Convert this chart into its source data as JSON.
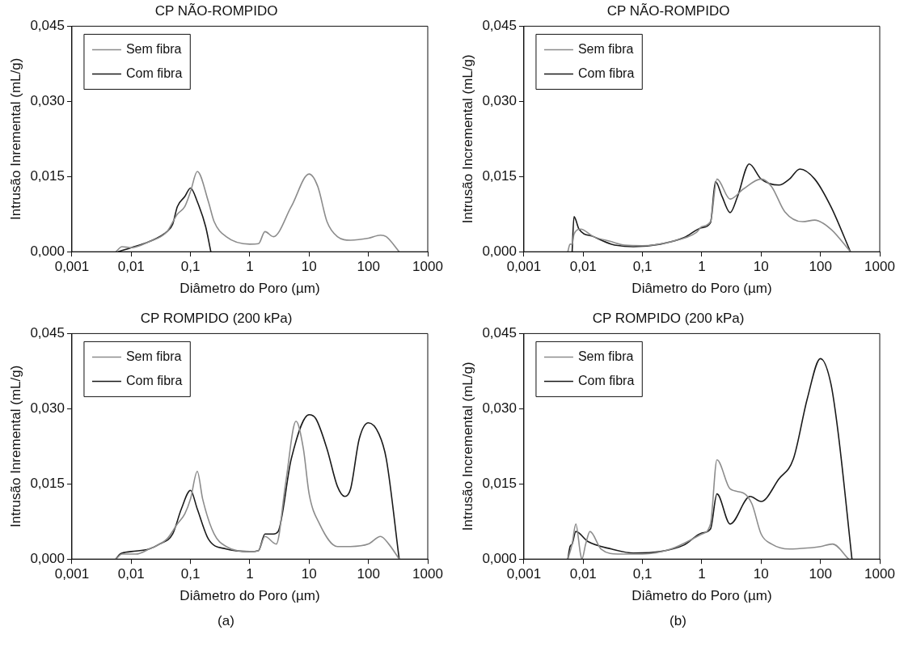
{
  "chart_data": [
    {
      "type": "line",
      "title": "CP NÃO-ROMPIDO",
      "xlabel": "Diâmetro do Poro (µm)",
      "ylabel": "Intrusão Inremental (mL/g)",
      "log": "x",
      "legend": "top left",
      "grid": false,
      "xlim": [
        0.001,
        1000
      ],
      "xticks": [
        {
          "value": 0.001,
          "label": "0,001"
        },
        {
          "value": 0.01,
          "label": "0,01"
        },
        {
          "value": 0.1,
          "label": "0,1"
        },
        {
          "value": 1,
          "label": "1"
        },
        {
          "value": 10,
          "label": "10"
        },
        {
          "value": 100,
          "label": "100"
        },
        {
          "value": 1000,
          "label": "1000"
        }
      ],
      "ylim": [
        0,
        0.045
      ],
      "yticks": [
        {
          "value": 0,
          "label": "0,000"
        },
        {
          "value": 0.015,
          "label": "0,015"
        },
        {
          "value": 0.03,
          "label": "0,030"
        },
        {
          "value": 0.045,
          "label": "0,045"
        }
      ],
      "series": [
        {
          "name": "Sem fibra",
          "color": "#8c8c8c",
          "x": [
            0.0055,
            0.007,
            0.01,
            0.02,
            0.04,
            0.06,
            0.08,
            0.1,
            0.13,
            0.2,
            0.25,
            0.4,
            1,
            1.4,
            1.8,
            2.5,
            5,
            10,
            14,
            20,
            30,
            50,
            100,
            160,
            200,
            330
          ],
          "values": [
            0,
            0.001,
            0.0008,
            0.002,
            0.004,
            0.0075,
            0.009,
            0.012,
            0.016,
            0.01,
            0.006,
            0.003,
            0.0015,
            0.0016,
            0.004,
            0.003,
            0.009,
            0.0155,
            0.013,
            0.006,
            0.003,
            0.0023,
            0.0027,
            0.0033,
            0.003,
            0
          ]
        },
        {
          "name": "Com fibra",
          "color": "#1a1a1a",
          "x": [
            0.006,
            0.01,
            0.02,
            0.04,
            0.05,
            0.06,
            0.08,
            0.1,
            0.13,
            0.18,
            0.22
          ],
          "values": [
            0,
            0.0008,
            0.002,
            0.004,
            0.0055,
            0.009,
            0.011,
            0.0127,
            0.01,
            0.005,
            0
          ]
        }
      ]
    },
    {
      "type": "line",
      "title": "CP NÃO-ROMPIDO",
      "xlabel": "Diâmetro do Poro (µm)",
      "ylabel": "Intrusão Incremental (mL/g)",
      "log": "x",
      "legend": "top left",
      "grid": false,
      "xlim": [
        0.001,
        1000
      ],
      "xticks": [
        {
          "value": 0.001,
          "label": "0,001"
        },
        {
          "value": 0.01,
          "label": "0,01"
        },
        {
          "value": 0.1,
          "label": "0,1"
        },
        {
          "value": 1,
          "label": "1"
        },
        {
          "value": 10,
          "label": "10"
        },
        {
          "value": 100,
          "label": "100"
        },
        {
          "value": 1000,
          "label": "1000"
        }
      ],
      "ylim": [
        0,
        0.045
      ],
      "yticks": [
        {
          "value": 0,
          "label": "0,000"
        },
        {
          "value": 0.015,
          "label": "0,015"
        },
        {
          "value": 0.03,
          "label": "0,030"
        },
        {
          "value": 0.045,
          "label": "0,045"
        }
      ],
      "series": [
        {
          "name": "Sem fibra",
          "color": "#8c8c8c",
          "x": [
            0.0055,
            0.006,
            0.0065,
            0.007,
            0.009,
            0.015,
            0.03,
            0.05,
            0.1,
            0.3,
            0.8,
            1,
            1.4,
            1.8,
            3,
            5,
            10,
            15,
            25,
            50,
            80,
            150,
            320
          ],
          "values": [
            0,
            0.0015,
            0.0015,
            0.0035,
            0.0045,
            0.003,
            0.002,
            0.0013,
            0.0012,
            0.002,
            0.0038,
            0.005,
            0.006,
            0.0145,
            0.0105,
            0.0125,
            0.0145,
            0.013,
            0.008,
            0.006,
            0.0063,
            0.0045,
            0
          ]
        },
        {
          "name": "Com fibra",
          "color": "#1a1a1a",
          "x": [
            0.0065,
            0.007,
            0.0085,
            0.015,
            0.03,
            0.07,
            0.2,
            0.5,
            1,
            1.4,
            1.7,
            2.2,
            3,
            4,
            6.3,
            10,
            20,
            30,
            45,
            80,
            150,
            320
          ],
          "values": [
            0,
            0.007,
            0.0045,
            0.003,
            0.0015,
            0.001,
            0.0015,
            0.0028,
            0.0048,
            0.0058,
            0.014,
            0.011,
            0.0078,
            0.011,
            0.0175,
            0.0145,
            0.0133,
            0.0145,
            0.0165,
            0.0145,
            0.009,
            0
          ]
        }
      ]
    },
    {
      "type": "line",
      "title": "CP ROMPIDO (200 kPa)",
      "xlabel": "Diâmetro do Poro (µm)",
      "ylabel": "Intrusão Inremental (mL/g)",
      "log": "x",
      "legend": "top left",
      "grid": false,
      "annotations": [
        "(a)"
      ],
      "xlim": [
        0.001,
        1000
      ],
      "xticks": [
        {
          "value": 0.001,
          "label": "0,001"
        },
        {
          "value": 0.01,
          "label": "0,01"
        },
        {
          "value": 0.1,
          "label": "0,1"
        },
        {
          "value": 1,
          "label": "1"
        },
        {
          "value": 10,
          "label": "10"
        },
        {
          "value": 100,
          "label": "100"
        },
        {
          "value": 1000,
          "label": "1000"
        }
      ],
      "ylim": [
        0,
        0.045
      ],
      "yticks": [
        {
          "value": 0,
          "label": "0,000"
        },
        {
          "value": 0.015,
          "label": "0,015"
        },
        {
          "value": 0.03,
          "label": "0,030"
        },
        {
          "value": 0.045,
          "label": "0,045"
        }
      ],
      "series": [
        {
          "name": "Sem fibra",
          "color": "#8c8c8c",
          "x": [
            0.0055,
            0.007,
            0.012,
            0.02,
            0.04,
            0.06,
            0.08,
            0.1,
            0.13,
            0.16,
            0.25,
            0.4,
            1,
            1.4,
            1.8,
            2.8,
            4,
            6,
            8,
            10,
            15,
            30,
            50,
            100,
            160,
            220,
            330
          ],
          "values": [
            0,
            0.001,
            0.001,
            0.002,
            0.004,
            0.007,
            0.009,
            0.012,
            0.0175,
            0.012,
            0.005,
            0.0025,
            0.0015,
            0.0017,
            0.0045,
            0.003,
            0.015,
            0.0275,
            0.022,
            0.013,
            0.007,
            0.0025,
            0.0025,
            0.003,
            0.0045,
            0.003,
            0
          ]
        },
        {
          "name": "Com fibra",
          "color": "#1a1a1a",
          "x": [
            0.0055,
            0.0065,
            0.01,
            0.02,
            0.03,
            0.05,
            0.07,
            0.1,
            0.13,
            0.2,
            0.4,
            1,
            1.4,
            1.8,
            2.5,
            3,
            5,
            10,
            13,
            20,
            30,
            40,
            50,
            70,
            100,
            150,
            200,
            330
          ],
          "values": [
            0,
            0.001,
            0.0015,
            0.002,
            0.003,
            0.005,
            0.01,
            0.0137,
            0.01,
            0.004,
            0.002,
            0.0015,
            0.0017,
            0.005,
            0.005,
            0.0055,
            0.02,
            0.0288,
            0.028,
            0.022,
            0.0145,
            0.0125,
            0.014,
            0.024,
            0.0272,
            0.025,
            0.02,
            0
          ]
        }
      ]
    },
    {
      "type": "line",
      "title": "CP ROMPIDO (200 kPa)",
      "xlabel": "Diâmetro do Poro (µm)",
      "ylabel": "Intrusão Incremental (mL/g)",
      "log": "x",
      "legend": "top left",
      "grid": false,
      "annotations": [
        "(b)"
      ],
      "xlim": [
        0.001,
        1000
      ],
      "xticks": [
        {
          "value": 0.001,
          "label": "0,001"
        },
        {
          "value": 0.01,
          "label": "0,01"
        },
        {
          "value": 0.1,
          "label": "0,1"
        },
        {
          "value": 1,
          "label": "1"
        },
        {
          "value": 10,
          "label": "10"
        },
        {
          "value": 100,
          "label": "100"
        },
        {
          "value": 1000,
          "label": "1000"
        }
      ],
      "ylim": [
        0,
        0.045
      ],
      "yticks": [
        {
          "value": 0,
          "label": "0,000"
        },
        {
          "value": 0.015,
          "label": "0,015"
        },
        {
          "value": 0.03,
          "label": "0,030"
        },
        {
          "value": 0.045,
          "label": "0,045"
        }
      ],
      "series": [
        {
          "name": "Sem fibra",
          "color": "#8c8c8c",
          "x": [
            0.0055,
            0.0065,
            0.0075,
            0.009,
            0.0095,
            0.011,
            0.013,
            0.02,
            0.04,
            0.1,
            0.3,
            1,
            1.4,
            1.8,
            3,
            5,
            7,
            10,
            15,
            30,
            60,
            100,
            160,
            300
          ],
          "values": [
            0,
            0.003,
            0.007,
            0.001,
            0,
            0.003,
            0.0055,
            0.002,
            0.001,
            0.001,
            0.002,
            0.005,
            0.007,
            0.0198,
            0.014,
            0.0132,
            0.011,
            0.005,
            0.003,
            0.002,
            0.0022,
            0.0025,
            0.003,
            0
          ]
        },
        {
          "name": "Com fibra",
          "color": "#1a1a1a",
          "x": [
            0.0055,
            0.006,
            0.0065,
            0.0075,
            0.012,
            0.03,
            0.07,
            0.2,
            0.5,
            1,
            1.4,
            1.8,
            3,
            6.5,
            10,
            20,
            35,
            60,
            100,
            150,
            200,
            340
          ],
          "values": [
            0,
            0.0025,
            0.003,
            0.0055,
            0.0035,
            0.002,
            0.0012,
            0.0015,
            0.0028,
            0.0052,
            0.006,
            0.013,
            0.007,
            0.0125,
            0.0115,
            0.016,
            0.02,
            0.032,
            0.04,
            0.035,
            0.025,
            0
          ]
        }
      ]
    }
  ]
}
